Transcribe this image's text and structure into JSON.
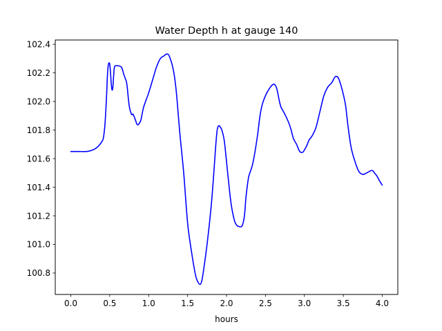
{
  "chart_data": {
    "type": "line",
    "title": "Water Depth h at gauge 140",
    "xlabel": "hours",
    "ylabel": "",
    "xlim": [
      -0.2,
      4.2
    ],
    "ylim": [
      100.65,
      102.43
    ],
    "xticks": [
      0.0,
      0.5,
      1.0,
      1.5,
      2.0,
      2.5,
      3.0,
      3.5,
      4.0
    ],
    "xtick_labels": [
      "0.0",
      "0.5",
      "1.0",
      "1.5",
      "2.0",
      "2.5",
      "3.0",
      "3.5",
      "4.0"
    ],
    "yticks": [
      100.8,
      101.0,
      101.2,
      101.4,
      101.6,
      101.8,
      102.0,
      102.2,
      102.4
    ],
    "ytick_labels": [
      "100.8",
      "101.0",
      "101.2",
      "101.4",
      "101.6",
      "101.8",
      "102.0",
      "102.2",
      "102.4"
    ],
    "grid": false,
    "series": [
      {
        "color": "#0000ff",
        "x": [
          0.0,
          0.1,
          0.2,
          0.25,
          0.3,
          0.35,
          0.4,
          0.42,
          0.44,
          0.46,
          0.47,
          0.48,
          0.49,
          0.5,
          0.51,
          0.52,
          0.53,
          0.54,
          0.55,
          0.56,
          0.58,
          0.6,
          0.65,
          0.68,
          0.7,
          0.72,
          0.75,
          0.78,
          0.8,
          0.83,
          0.85,
          0.87,
          0.9,
          0.93,
          0.96,
          1.0,
          1.05,
          1.1,
          1.15,
          1.2,
          1.22,
          1.25,
          1.27,
          1.3,
          1.33,
          1.36,
          1.4,
          1.45,
          1.5,
          1.55,
          1.6,
          1.63,
          1.66,
          1.68,
          1.7,
          1.75,
          1.8,
          1.83,
          1.86,
          1.88,
          1.9,
          1.92,
          1.94,
          1.97,
          2.0,
          2.03,
          2.06,
          2.1,
          2.13,
          2.16,
          2.2,
          2.23,
          2.25,
          2.28,
          2.3,
          2.33,
          2.36,
          2.4,
          2.43,
          2.46,
          2.5,
          2.55,
          2.6,
          2.63,
          2.65,
          2.68,
          2.7,
          2.72,
          2.75,
          2.8,
          2.83,
          2.86,
          2.9,
          2.93,
          2.95,
          2.98,
          3.0,
          3.03,
          3.06,
          3.1,
          3.15,
          3.2,
          3.25,
          3.3,
          3.35,
          3.38,
          3.4,
          3.43,
          3.46,
          3.5,
          3.53,
          3.56,
          3.6,
          3.65,
          3.7,
          3.75,
          3.8,
          3.85,
          3.88,
          3.9,
          3.93,
          3.96,
          4.0
        ],
        "y": [
          101.65,
          101.65,
          101.65,
          101.655,
          101.665,
          101.685,
          101.72,
          101.75,
          101.85,
          102.05,
          102.18,
          102.25,
          102.27,
          102.26,
          102.2,
          102.12,
          102.08,
          102.1,
          102.18,
          102.24,
          102.25,
          102.25,
          102.24,
          102.19,
          102.16,
          102.12,
          101.97,
          101.91,
          101.91,
          101.87,
          101.84,
          101.84,
          101.87,
          101.95,
          102.0,
          102.06,
          102.15,
          102.24,
          102.3,
          102.32,
          102.33,
          102.33,
          102.31,
          102.26,
          102.18,
          102.04,
          101.78,
          101.5,
          101.15,
          100.95,
          100.79,
          100.74,
          100.72,
          100.74,
          100.8,
          101.0,
          101.25,
          101.45,
          101.68,
          101.8,
          101.83,
          101.82,
          101.8,
          101.73,
          101.58,
          101.42,
          101.28,
          101.17,
          101.135,
          101.125,
          101.13,
          101.2,
          101.33,
          101.46,
          101.5,
          101.55,
          101.63,
          101.77,
          101.9,
          101.98,
          102.04,
          102.09,
          102.12,
          102.11,
          102.08,
          102.0,
          101.96,
          101.94,
          101.91,
          101.85,
          101.8,
          101.74,
          101.7,
          101.66,
          101.645,
          101.645,
          101.66,
          101.69,
          101.73,
          101.76,
          101.82,
          101.93,
          102.04,
          102.1,
          102.13,
          102.16,
          102.175,
          102.17,
          102.13,
          102.05,
          101.97,
          101.83,
          101.68,
          101.58,
          101.51,
          101.49,
          101.5,
          101.515,
          101.515,
          101.5,
          101.48,
          101.45,
          101.415
        ]
      }
    ]
  }
}
